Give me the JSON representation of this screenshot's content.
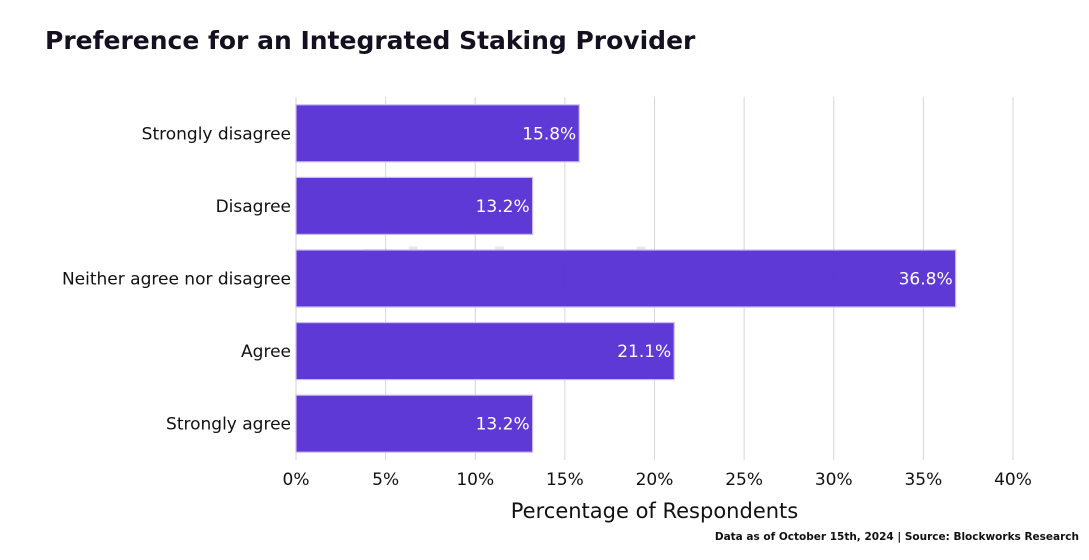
{
  "chart_data": {
    "type": "bar",
    "orientation": "horizontal",
    "title": "Preference for an Integrated Staking Provider",
    "categories": [
      "Strongly disagree",
      "Disagree",
      "Neither agree nor disagree",
      "Agree",
      "Strongly agree"
    ],
    "values": [
      15.8,
      13.2,
      36.8,
      21.1,
      13.2
    ],
    "data_labels": [
      "15.8%",
      "13.2%",
      "36.8%",
      "21.1%",
      "13.2%"
    ],
    "xlabel": "Percentage of Respondents",
    "ylabel": "",
    "xlim": [
      0,
      40
    ],
    "x_ticks": [
      0,
      5,
      10,
      15,
      20,
      25,
      30,
      35,
      40
    ],
    "x_tick_labels": [
      "0%",
      "5%",
      "10%",
      "15%",
      "20%",
      "25%",
      "30%",
      "35%",
      "40%"
    ],
    "grid": "vertical",
    "bar_color": "#5b35d5"
  },
  "watermark": {
    "brand": "Blockworks",
    "badge": "Research"
  },
  "footer": "Data as of October 15th, 2024 | Source: Blockworks Research"
}
